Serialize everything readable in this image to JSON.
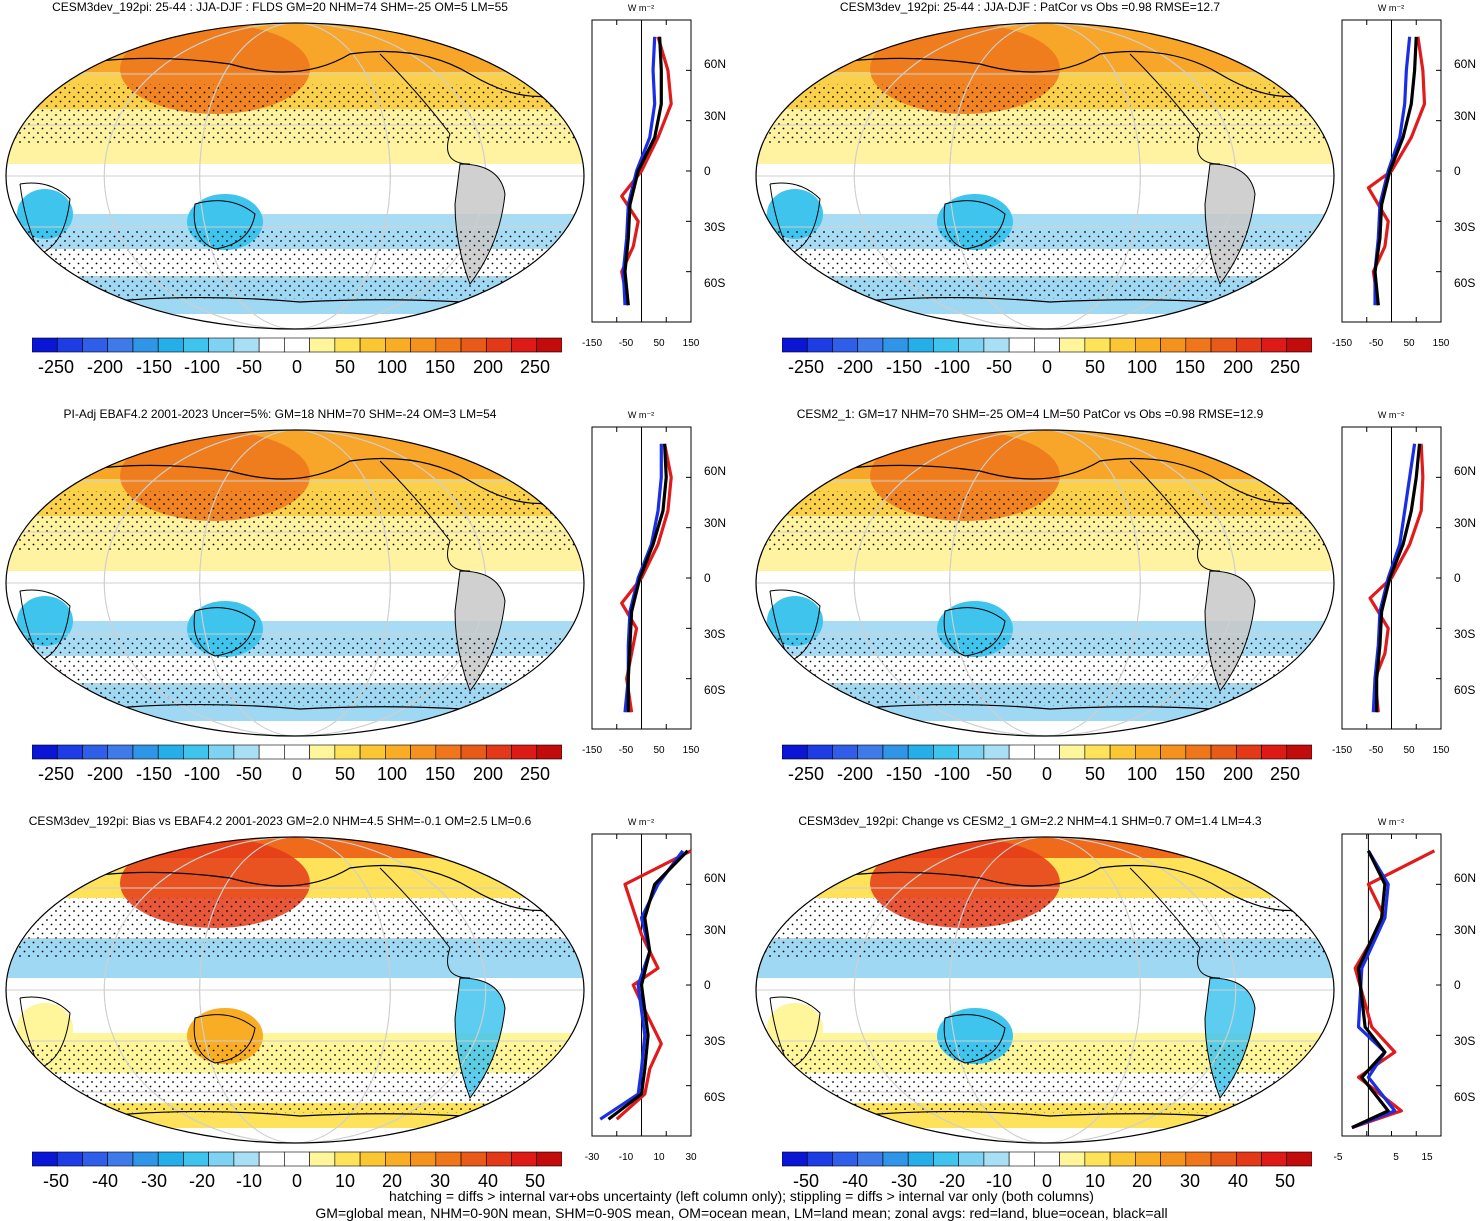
{
  "panels": [
    {
      "title": "CESM3dev_192pi: 25-44 : JJA-DJF : FLDS GM=20 NHM=74 SHM=-25 OM=5 LM=55",
      "cb_labels": [
        "-250",
        "-200",
        "-150",
        "-100",
        "-50",
        "0",
        "50",
        "100",
        "150",
        "200",
        "250"
      ],
      "zon_xticks": [
        "-150",
        "-50",
        "50",
        "150"
      ]
    },
    {
      "title": "CESM3dev_192pi: 25-44 : JJA-DJF : PatCor vs Obs =0.98 RMSE=12.7",
      "cb_labels": [
        "-250",
        "-200",
        "-150",
        "-100",
        "-50",
        "0",
        "50",
        "100",
        "150",
        "200",
        "250"
      ],
      "zon_xticks": [
        "-150",
        "-50",
        "50",
        "150"
      ]
    },
    {
      "title": "PI-Adj EBAF4.2 2001-2023 Uncer=5%: GM=18 NHM=70 SHM=-24 OM=3 LM=54",
      "cb_labels": [
        "-250",
        "-200",
        "-150",
        "-100",
        "-50",
        "0",
        "50",
        "100",
        "150",
        "200",
        "250"
      ],
      "zon_xticks": [
        "-150",
        "-50",
        "50",
        "150"
      ]
    },
    {
      "title": "CESM2_1: GM=17 NHM=70 SHM=-25 OM=4 LM=50 PatCor vs Obs =0.98 RMSE=12.9",
      "cb_labels": [
        "-250",
        "-200",
        "-150",
        "-100",
        "-50",
        "0",
        "50",
        "100",
        "150",
        "200",
        "250"
      ],
      "zon_xticks": [
        "-150",
        "-50",
        "50",
        "150"
      ]
    },
    {
      "title": "CESM3dev_192pi: Bias vs EBAF4.2 2001-2023 GM=2.0 NHM=4.5 SHM=-0.1 OM=2.5 LM=0.6",
      "cb_labels": [
        "-50",
        "-40",
        "-30",
        "-20",
        "-10",
        "0",
        "10",
        "20",
        "30",
        "40",
        "50"
      ],
      "zon_xticks": [
        "-30",
        "-10",
        "10",
        "30"
      ]
    },
    {
      "title": "CESM3dev_192pi: Change vs CESM2_1 GM=2.2 NHM=4.1 SHM=0.7 OM=1.4 LM=4.3",
      "cb_labels": [
        "-50",
        "-40",
        "-30",
        "-20",
        "-10",
        "0",
        "10",
        "20",
        "30",
        "40",
        "50"
      ],
      "zon_xticks": [
        "-5",
        "5",
        "15"
      ]
    }
  ],
  "zon_yticks": [
    "60N",
    "30N",
    "0",
    "30S",
    "60S"
  ],
  "zon_units": "W m⁻²",
  "colors": {
    "land": "#e11b1b",
    "ocean": "#1a2ee6",
    "all": "#000000"
  },
  "cb_colors": [
    "#0a16d4",
    "#1d3ce3",
    "#2f5ee8",
    "#3e7be8",
    "#2f95e6",
    "#26aee8",
    "#3fc4ee",
    "#7fd3f2",
    "#a9dff4",
    "#ffffff",
    "#ffffff",
    "#fff59a",
    "#fde25a",
    "#fbc633",
    "#f8ad25",
    "#f5921d",
    "#ef761b",
    "#e85a18",
    "#e43918",
    "#de1a16",
    "#c20c0c"
  ],
  "chart_data": [
    {
      "type": "map+zonal-line",
      "title": "CESM3dev_192pi: 25-44 : JJA-DJF : FLDS GM=20 NHM=74 SHM=-25 OM=5 LM=55",
      "colorbar": [
        -250,
        -200,
        -150,
        -100,
        -50,
        0,
        50,
        100,
        150,
        200,
        250
      ],
      "xlim": [
        -150,
        150
      ],
      "ylim": [
        -90,
        90
      ],
      "series": [
        {
          "name": "land",
          "values": [
            [
              -40,
              -80
            ],
            [
              -60,
              -60
            ],
            [
              -25,
              -45
            ],
            [
              -10,
              -30
            ],
            [
              -60,
              -15
            ],
            [
              0,
              0
            ],
            [
              50,
              20
            ],
            [
              90,
              40
            ],
            [
              80,
              60
            ],
            [
              50,
              80
            ]
          ]
        },
        {
          "name": "ocean",
          "values": [
            [
              -50,
              -80
            ],
            [
              -55,
              -60
            ],
            [
              -45,
              -40
            ],
            [
              -40,
              -20
            ],
            [
              -15,
              0
            ],
            [
              25,
              20
            ],
            [
              40,
              40
            ],
            [
              35,
              60
            ],
            [
              40,
              80
            ]
          ]
        },
        {
          "name": "all",
          "values": [
            [
              -40,
              -80
            ],
            [
              -50,
              -60
            ],
            [
              -40,
              -40
            ],
            [
              -35,
              -20
            ],
            [
              -10,
              0
            ],
            [
              40,
              20
            ],
            [
              60,
              40
            ],
            [
              60,
              60
            ],
            [
              55,
              80
            ]
          ]
        }
      ]
    },
    {
      "type": "map+zonal-line",
      "title": "CESM3dev_192pi: 25-44 : JJA-DJF : PatCor vs Obs =0.98 RMSE=12.7",
      "colorbar": [
        -250,
        -200,
        -150,
        -100,
        -50,
        0,
        50,
        100,
        150,
        200,
        250
      ],
      "xlim": [
        -150,
        150
      ],
      "ylim": [
        -90,
        90
      ],
      "series": [
        {
          "name": "land",
          "values": [
            [
              -40,
              -80
            ],
            [
              -55,
              -60
            ],
            [
              -20,
              -45
            ],
            [
              -10,
              -30
            ],
            [
              -70,
              -10
            ],
            [
              0,
              0
            ],
            [
              60,
              20
            ],
            [
              100,
              40
            ],
            [
              95,
              60
            ],
            [
              80,
              80
            ]
          ]
        },
        {
          "name": "ocean",
          "values": [
            [
              -50,
              -80
            ],
            [
              -50,
              -60
            ],
            [
              -40,
              -40
            ],
            [
              -35,
              -20
            ],
            [
              -10,
              0
            ],
            [
              25,
              20
            ],
            [
              40,
              40
            ],
            [
              45,
              60
            ],
            [
              55,
              80
            ]
          ]
        },
        {
          "name": "all",
          "values": [
            [
              -40,
              -80
            ],
            [
              -50,
              -60
            ],
            [
              -35,
              -40
            ],
            [
              -30,
              -20
            ],
            [
              -5,
              0
            ],
            [
              35,
              20
            ],
            [
              60,
              40
            ],
            [
              70,
              60
            ],
            [
              75,
              80
            ]
          ]
        }
      ]
    },
    {
      "type": "map+zonal-line",
      "title": "PI-Adj EBAF4.2 2001-2023 Uncer=5%: GM=18 NHM=70 SHM=-24 OM=3 LM=54",
      "colorbar": [
        -250,
        -200,
        -150,
        -100,
        -50,
        0,
        50,
        100,
        150,
        200,
        250
      ],
      "xlim": [
        -150,
        150
      ],
      "ylim": [
        -90,
        90
      ],
      "series": [
        {
          "name": "land",
          "values": [
            [
              -30,
              -80
            ],
            [
              -45,
              -60
            ],
            [
              -30,
              -45
            ],
            [
              -15,
              -30
            ],
            [
              -60,
              -15
            ],
            [
              0,
              0
            ],
            [
              50,
              20
            ],
            [
              80,
              40
            ],
            [
              90,
              60
            ],
            [
              70,
              80
            ]
          ]
        },
        {
          "name": "ocean",
          "values": [
            [
              -50,
              -80
            ],
            [
              -40,
              -60
            ],
            [
              -40,
              -40
            ],
            [
              -35,
              -20
            ],
            [
              -10,
              0
            ],
            [
              30,
              20
            ],
            [
              50,
              40
            ],
            [
              60,
              60
            ],
            [
              60,
              80
            ]
          ]
        },
        {
          "name": "all",
          "values": [
            [
              -40,
              -80
            ],
            [
              -40,
              -60
            ],
            [
              -35,
              -40
            ],
            [
              -30,
              -20
            ],
            [
              -5,
              0
            ],
            [
              35,
              20
            ],
            [
              65,
              40
            ],
            [
              75,
              60
            ],
            [
              70,
              80
            ]
          ]
        }
      ]
    },
    {
      "type": "map+zonal-line",
      "title": "CESM2_1: GM=17 NHM=70 SHM=-25 OM=4 LM=50 PatCor vs Obs =0.98 RMSE=12.9",
      "colorbar": [
        -250,
        -200,
        -150,
        -100,
        -50,
        0,
        50,
        100,
        150,
        200,
        250
      ],
      "xlim": [
        -150,
        150
      ],
      "ylim": [
        -90,
        90
      ],
      "series": [
        {
          "name": "land",
          "values": [
            [
              -40,
              -80
            ],
            [
              -50,
              -60
            ],
            [
              -20,
              -45
            ],
            [
              -10,
              -30
            ],
            [
              -65,
              -12
            ],
            [
              0,
              0
            ],
            [
              55,
              20
            ],
            [
              90,
              40
            ],
            [
              95,
              60
            ],
            [
              90,
              80
            ]
          ]
        },
        {
          "name": "ocean",
          "values": [
            [
              -55,
              -80
            ],
            [
              -50,
              -60
            ],
            [
              -40,
              -40
            ],
            [
              -35,
              -20
            ],
            [
              -10,
              0
            ],
            [
              25,
              20
            ],
            [
              40,
              40
            ],
            [
              55,
              60
            ],
            [
              70,
              80
            ]
          ]
        },
        {
          "name": "all",
          "values": [
            [
              -45,
              -80
            ],
            [
              -45,
              -60
            ],
            [
              -35,
              -40
            ],
            [
              -30,
              -20
            ],
            [
              -5,
              0
            ],
            [
              35,
              20
            ],
            [
              60,
              40
            ],
            [
              75,
              60
            ],
            [
              85,
              80
            ]
          ]
        }
      ]
    },
    {
      "type": "map+zonal-line",
      "title": "CESM3dev_192pi: Bias vs EBAF4.2 2001-2023 GM=2.0 NHM=4.5 SHM=-0.1 OM=2.5 LM=0.6",
      "colorbar": [
        -50,
        -40,
        -30,
        -20,
        -10,
        0,
        10,
        20,
        30,
        40,
        50
      ],
      "xlim": [
        -30,
        30
      ],
      "ylim": [
        -90,
        90
      ],
      "series": [
        {
          "name": "land",
          "values": [
            [
              -15,
              -80
            ],
            [
              2,
              -65
            ],
            [
              5,
              -50
            ],
            [
              12,
              -35
            ],
            [
              2,
              -15
            ],
            [
              -5,
              0
            ],
            [
              10,
              10
            ],
            [
              0,
              30
            ],
            [
              -10,
              60
            ],
            [
              30,
              80
            ]
          ]
        },
        {
          "name": "ocean",
          "values": [
            [
              -25,
              -80
            ],
            [
              -2,
              -65
            ],
            [
              0,
              -50
            ],
            [
              2,
              -30
            ],
            [
              -2,
              0
            ],
            [
              5,
              20
            ],
            [
              0,
              40
            ],
            [
              10,
              60
            ],
            [
              25,
              80
            ]
          ]
        },
        {
          "name": "all",
          "values": [
            [
              -20,
              -80
            ],
            [
              0,
              -65
            ],
            [
              2,
              -50
            ],
            [
              4,
              -30
            ],
            [
              0,
              0
            ],
            [
              5,
              20
            ],
            [
              2,
              40
            ],
            [
              8,
              60
            ],
            [
              28,
              80
            ]
          ]
        }
      ]
    },
    {
      "type": "map+zonal-line",
      "title": "CESM3dev_192pi: Change vs CESM2_1 GM=2.2 NHM=4.1 SHM=0.7 OM=1.4 LM=4.3",
      "colorbar": [
        -50,
        -40,
        -30,
        -20,
        -10,
        0,
        10,
        20,
        30,
        40,
        50
      ],
      "xlim": [
        -8,
        22
      ],
      "ylim": [
        -90,
        90
      ],
      "series": [
        {
          "name": "land",
          "values": [
            [
              -5,
              -85
            ],
            [
              10,
              -75
            ],
            [
              -3,
              -55
            ],
            [
              8,
              -40
            ],
            [
              1,
              -25
            ],
            [
              -4,
              10
            ],
            [
              5,
              40
            ],
            [
              0,
              60
            ],
            [
              20,
              80
            ]
          ]
        },
        {
          "name": "ocean",
          "values": [
            [
              -5,
              -85
            ],
            [
              8,
              -75
            ],
            [
              0,
              -55
            ],
            [
              5,
              -40
            ],
            [
              -3,
              -25
            ],
            [
              -2,
              10
            ],
            [
              5,
              40
            ],
            [
              6,
              60
            ],
            [
              0,
              80
            ]
          ]
        },
        {
          "name": "all",
          "values": [
            [
              -5,
              -85
            ],
            [
              6,
              -75
            ],
            [
              -2,
              -55
            ],
            [
              5,
              -40
            ],
            [
              -1,
              -25
            ],
            [
              -3,
              10
            ],
            [
              4,
              40
            ],
            [
              5,
              60
            ],
            [
              0,
              80
            ]
          ]
        }
      ]
    }
  ],
  "footer": {
    "line1": "hatching = diffs > internal var+obs uncertainty (left column only); stippling = diffs > internal var only (both columns)",
    "line2": "GM=global mean, NHM=0-90N mean, SHM=0-90S mean, OM=ocean mean, LM=land mean; zonal avgs: red=land, blue=ocean, black=all"
  }
}
